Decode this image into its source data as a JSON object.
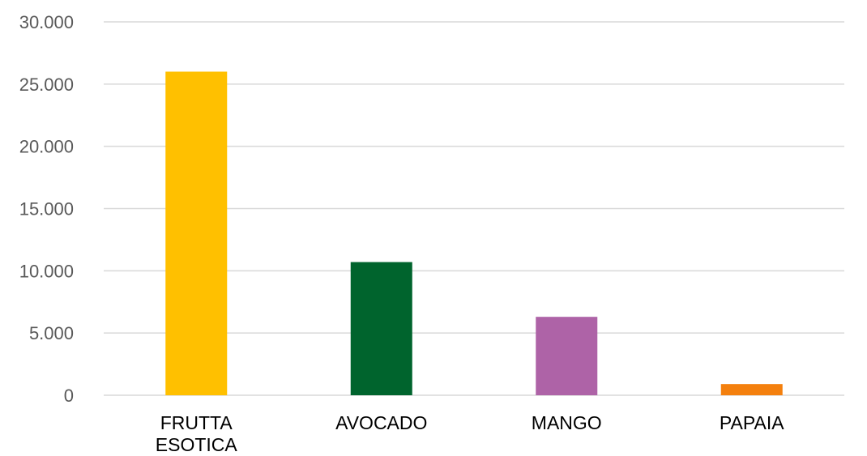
{
  "chart_data": {
    "type": "bar",
    "title": "",
    "xlabel": "",
    "ylabel": "",
    "categories": [
      [
        "FRUTTA",
        "ESOTICA"
      ],
      [
        "AVOCADO"
      ],
      [
        "MANGO"
      ],
      [
        "PAPAIA"
      ]
    ],
    "values": [
      26000,
      10700,
      6300,
      900
    ],
    "colors": [
      "#FFC000",
      "#00642D",
      "#AE63A7",
      "#F4800E"
    ],
    "ylim": [
      0,
      30000
    ],
    "yticks": [
      0,
      5000,
      10000,
      15000,
      20000,
      25000,
      30000
    ],
    "ytick_labels": [
      "0",
      "5.000",
      "10.000",
      "15.000",
      "20.000",
      "25.000",
      "30.000"
    ],
    "grid": true,
    "legend": "none"
  }
}
